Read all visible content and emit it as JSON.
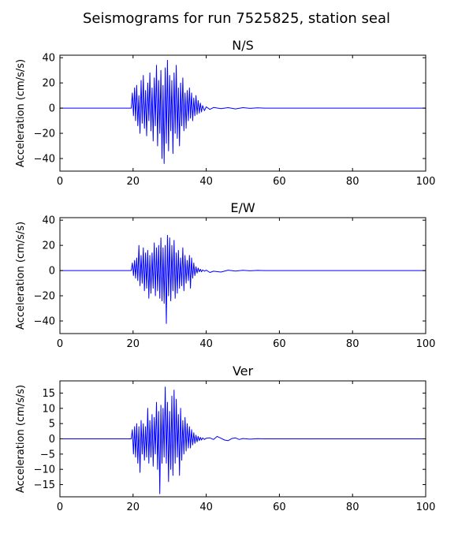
{
  "title": "Seismograms for run 7525825, station seal",
  "chart_data": [
    {
      "type": "line",
      "title": "N/S",
      "xlabel": "",
      "ylabel": "Acceleration (cm/s/s)",
      "xlim": [
        0,
        100
      ],
      "ylim": [
        -50,
        42
      ],
      "xticks": [
        0,
        20,
        40,
        60,
        80,
        100
      ],
      "yticks": [
        -40,
        -20,
        0,
        20,
        40
      ],
      "series": [
        {
          "color": "#0000ff",
          "x": [
            0,
            19.5,
            19.8,
            20.1,
            20.4,
            20.7,
            21.0,
            21.3,
            21.6,
            21.9,
            22.2,
            22.5,
            22.8,
            23.1,
            23.4,
            23.7,
            24.0,
            24.3,
            24.6,
            24.9,
            25.2,
            25.5,
            25.8,
            26.1,
            26.4,
            26.7,
            27.0,
            27.3,
            27.6,
            27.9,
            28.2,
            28.5,
            28.8,
            29.1,
            29.4,
            29.7,
            30.0,
            30.3,
            30.6,
            30.9,
            31.2,
            31.5,
            31.8,
            32.1,
            32.4,
            32.7,
            33.0,
            33.3,
            33.6,
            33.9,
            34.2,
            34.5,
            34.8,
            35.1,
            35.4,
            35.7,
            36.0,
            36.3,
            36.6,
            36.9,
            37.2,
            37.5,
            37.8,
            38.1,
            38.4,
            38.7,
            39.0,
            39.5,
            40.0,
            41.0,
            42.0,
            44.0,
            46.0,
            48.0,
            50.0,
            52.0,
            54.0,
            56.0,
            100
          ],
          "y": [
            0,
            0,
            12,
            -6,
            16,
            -10,
            18,
            -14,
            10,
            -20,
            22,
            -12,
            26,
            -16,
            14,
            -22,
            20,
            -10,
            28,
            -18,
            16,
            -26,
            24,
            -14,
            34,
            -30,
            22,
            -20,
            30,
            -40,
            18,
            -44,
            32,
            -28,
            38,
            -34,
            26,
            -18,
            22,
            -36,
            28,
            -20,
            34,
            -24,
            16,
            -30,
            20,
            -14,
            24,
            -18,
            12,
            -16,
            14,
            -10,
            16,
            -8,
            12,
            -10,
            8,
            -6,
            10,
            -5,
            6,
            -4,
            4,
            -3,
            2,
            -2,
            1,
            -1,
            0.5,
            -0.4,
            0.4,
            -0.6,
            0.4,
            -0.2,
            0.2,
            0,
            0
          ]
        }
      ]
    },
    {
      "type": "line",
      "title": "E/W",
      "xlabel": "",
      "ylabel": "Acceleration (cm/s/s)",
      "xlim": [
        0,
        100
      ],
      "ylim": [
        -50,
        42
      ],
      "xticks": [
        0,
        20,
        40,
        60,
        80,
        100
      ],
      "yticks": [
        -40,
        -20,
        0,
        20,
        40
      ],
      "series": [
        {
          "color": "#0000ff",
          "x": [
            0,
            19.5,
            19.8,
            20.1,
            20.4,
            20.7,
            21.0,
            21.3,
            21.6,
            21.9,
            22.2,
            22.5,
            22.8,
            23.1,
            23.4,
            23.7,
            24.0,
            24.3,
            24.6,
            24.9,
            25.2,
            25.5,
            25.8,
            26.1,
            26.4,
            26.7,
            27.0,
            27.3,
            27.6,
            27.9,
            28.2,
            28.5,
            28.8,
            29.1,
            29.4,
            29.7,
            30.0,
            30.3,
            30.6,
            30.9,
            31.2,
            31.5,
            31.8,
            32.1,
            32.4,
            32.7,
            33.0,
            33.3,
            33.6,
            33.9,
            34.2,
            34.5,
            34.8,
            35.1,
            35.4,
            35.7,
            36.0,
            36.3,
            36.6,
            36.9,
            37.2,
            37.5,
            37.8,
            38.1,
            38.4,
            38.7,
            39.0,
            39.5,
            40.0,
            41.0,
            42.0,
            44.0,
            46.0,
            48.0,
            50.0,
            52.0,
            54.0,
            56.0,
            100
          ],
          "y": [
            0,
            0,
            6,
            -4,
            8,
            -6,
            10,
            -8,
            20,
            -12,
            12,
            -10,
            18,
            -16,
            14,
            -14,
            16,
            -22,
            12,
            -18,
            14,
            -14,
            22,
            -20,
            18,
            -16,
            20,
            -22,
            26,
            -24,
            18,
            -26,
            20,
            -42,
            28,
            -20,
            26,
            -24,
            20,
            -16,
            24,
            -22,
            14,
            -18,
            16,
            -14,
            10,
            -12,
            18,
            -16,
            12,
            -10,
            8,
            -8,
            12,
            -14,
            10,
            -6,
            6,
            -4,
            3,
            -2,
            2,
            -1,
            1,
            -1,
            0.5,
            -0.5,
            0.3,
            -1.5,
            -0.5,
            -1.2,
            0.3,
            -0.4,
            0.2,
            -0.2,
            0.1,
            0,
            0
          ]
        }
      ]
    },
    {
      "type": "line",
      "title": "Ver",
      "xlabel": "",
      "ylabel": "Acceleration (cm/s/s)",
      "xlim": [
        0,
        100
      ],
      "ylim": [
        -19,
        19
      ],
      "xticks": [
        0,
        20,
        40,
        60,
        80,
        100
      ],
      "yticks": [
        -15,
        -10,
        -5,
        0,
        5,
        10,
        15
      ],
      "series": [
        {
          "color": "#0000ff",
          "x": [
            0,
            19.5,
            19.8,
            20.1,
            20.4,
            20.7,
            21.0,
            21.3,
            21.6,
            21.9,
            22.2,
            22.5,
            22.8,
            23.1,
            23.4,
            23.7,
            24.0,
            24.3,
            24.6,
            24.9,
            25.2,
            25.5,
            25.8,
            26.1,
            26.4,
            26.7,
            27.0,
            27.3,
            27.6,
            27.9,
            28.2,
            28.5,
            28.8,
            29.1,
            29.4,
            29.7,
            30.0,
            30.3,
            30.6,
            30.9,
            31.2,
            31.5,
            31.8,
            32.1,
            32.4,
            32.7,
            33.0,
            33.3,
            33.6,
            33.9,
            34.2,
            34.5,
            34.8,
            35.1,
            35.4,
            35.7,
            36.0,
            36.3,
            36.6,
            36.9,
            37.2,
            37.5,
            37.8,
            38.1,
            38.4,
            38.7,
            39.0,
            39.5,
            40.0,
            41.0,
            42.0,
            43.0,
            44.0,
            45.0,
            46.0,
            47.0,
            48.0,
            49.0,
            50.0,
            52.0,
            54.0,
            56.0,
            100
          ],
          "y": [
            0,
            0,
            3,
            -5,
            4,
            -6,
            5,
            -8,
            4,
            -11,
            6,
            -5,
            5,
            -7,
            4,
            -6,
            10,
            -8,
            6,
            -6,
            8,
            -9,
            7,
            -5,
            12,
            -10,
            9,
            -18,
            11,
            -8,
            10,
            -6,
            17,
            -8,
            12,
            -14,
            9,
            -10,
            14,
            -12,
            16,
            -8,
            13,
            -6,
            8,
            -12,
            10,
            -7,
            6,
            -5,
            7,
            -4,
            5,
            -3,
            4,
            -3,
            3,
            -2,
            2,
            -1.5,
            1.2,
            -1,
            0.8,
            -0.6,
            0.5,
            -0.4,
            0.3,
            -0.2,
            0.2,
            0.3,
            -0.2,
            0.8,
            0.2,
            -0.4,
            -0.6,
            0.1,
            0.3,
            -0.2,
            0.1,
            -0.1,
            0.05,
            0,
            0
          ]
        }
      ]
    }
  ]
}
